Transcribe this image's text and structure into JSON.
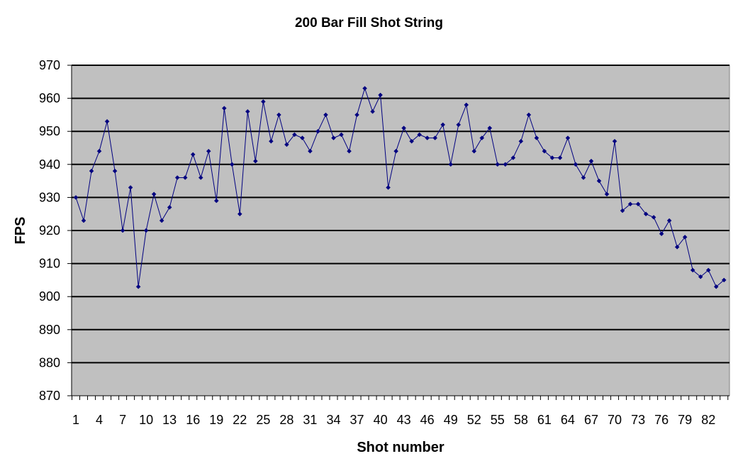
{
  "chart_data": {
    "type": "line",
    "title": "200 Bar Fill Shot String",
    "xlabel": "Shot number",
    "ylabel": "FPS",
    "ylim": [
      870,
      970
    ],
    "yticks": [
      "870",
      "880",
      "890",
      "900",
      "910",
      "920",
      "930",
      "940",
      "950",
      "960",
      "970"
    ],
    "xtick_labels": [
      "1",
      "4",
      "7",
      "10",
      "13",
      "16",
      "19",
      "22",
      "25",
      "28",
      "31",
      "34",
      "37",
      "40",
      "43",
      "46",
      "49",
      "52",
      "55",
      "58",
      "61",
      "64",
      "67",
      "70",
      "73",
      "76",
      "79",
      "82"
    ],
    "grid": true,
    "legend": "none",
    "plot_background": "#c0c0c0",
    "series": [
      {
        "color": "#000080",
        "x": [
          1,
          2,
          3,
          4,
          5,
          6,
          7,
          8,
          9,
          10,
          11,
          12,
          13,
          14,
          15,
          16,
          17,
          18,
          19,
          20,
          21,
          22,
          23,
          24,
          25,
          26,
          27,
          28,
          29,
          30,
          31,
          32,
          33,
          34,
          35,
          36,
          37,
          38,
          39,
          40,
          41,
          42,
          43,
          44,
          45,
          46,
          47,
          48,
          49,
          50,
          51,
          52,
          53,
          54,
          55,
          56,
          57,
          58,
          59,
          60,
          61,
          62,
          63,
          64,
          65,
          66,
          67,
          68,
          69,
          70,
          71,
          72,
          73,
          74,
          75,
          76,
          77,
          78,
          79,
          80,
          81,
          82,
          83,
          84
        ],
        "values": [
          930,
          923,
          938,
          944,
          953,
          938,
          920,
          933,
          903,
          920,
          931,
          923,
          927,
          936,
          936,
          943,
          936,
          944,
          929,
          957,
          940,
          925,
          956,
          941,
          959,
          947,
          955,
          946,
          949,
          948,
          944,
          950,
          955,
          948,
          949,
          944,
          955,
          963,
          956,
          961,
          933,
          944,
          951,
          947,
          949,
          948,
          948,
          952,
          940,
          952,
          958,
          944,
          948,
          951,
          940,
          940,
          942,
          947,
          955,
          948,
          944,
          942,
          942,
          948,
          940,
          936,
          941,
          935,
          931,
          947,
          926,
          928,
          928,
          925,
          924,
          919,
          923,
          915,
          918,
          908,
          906,
          908,
          903,
          905
        ]
      }
    ]
  }
}
